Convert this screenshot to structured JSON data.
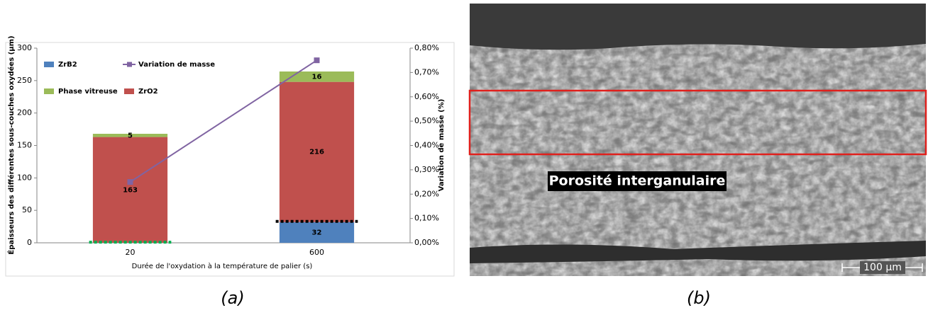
{
  "chart_data": {
    "type": "stacked_bar_line",
    "y_label": "Épaisseurs des différentes sous-couches oxydées (µm)",
    "y2_label": "Variation de masse (%)",
    "x_label": "Durée de l'oxydation à la température de palier (s)",
    "categories": [
      "20",
      "600"
    ],
    "series": [
      {
        "name": "ZrB2",
        "color": "#4f81bd",
        "values": [
          null,
          32
        ]
      },
      {
        "name": "ZrO2",
        "color": "#c0504d",
        "values": [
          163,
          216
        ]
      },
      {
        "name": "Phase vitreuse",
        "color": "#9bbb59",
        "values": [
          5,
          16
        ]
      },
      {
        "name": "Variation de masse",
        "color": "#8064a2",
        "axis": "y2",
        "values": [
          0.25,
          0.75
        ]
      }
    ],
    "dashes": [
      {
        "color": "#00b050",
        "values": [
          1,
          null
        ]
      },
      {
        "color": "#000000",
        "values": [
          null,
          33
        ]
      }
    ],
    "ylim": [
      0,
      300
    ],
    "yticks": [
      0,
      50,
      100,
      150,
      200,
      250,
      300
    ],
    "y2lim": [
      0,
      0.8
    ],
    "y2ticks": [
      {
        "value": 0,
        "label": "0,00%"
      },
      {
        "value": 0.1,
        "label": "0,10%"
      },
      {
        "value": 0.2,
        "label": "0,20%"
      },
      {
        "value": 0.3,
        "label": "0,30%"
      },
      {
        "value": 0.4,
        "label": "0,40%"
      },
      {
        "value": 0.5,
        "label": "0,50%"
      },
      {
        "value": 0.6,
        "label": "0,60%"
      },
      {
        "value": 0.7,
        "label": "0,70%"
      },
      {
        "value": 0.8,
        "label": "0,80%"
      }
    ]
  },
  "figure": {
    "panels": [
      "(a)",
      "(b)"
    ],
    "image_annotation": "Porosité interganulaire",
    "scale_bar": "100 µm"
  }
}
